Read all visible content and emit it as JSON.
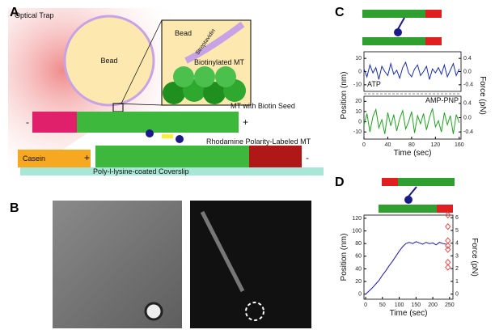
{
  "panel_labels": [
    "A",
    "B",
    "C",
    "D"
  ],
  "diagram": {
    "optical_trap": "Optical Trap",
    "bead": "Bead",
    "inset_bead": "Bead",
    "streptavidin": "Streptavidin",
    "biotinylated_mt": "Biotinylated MT",
    "mt_biotin_seed": "MT with Biotin Seed",
    "seed_minus": "-",
    "seed_plus": "+",
    "rhodamine_mt": "Rhodamine Polarity-Labeled MT",
    "casein": "Casein",
    "lower_plus": "+",
    "lower_minus": "-",
    "coverslip": "Poly-l-lysine-coated Coverslip"
  },
  "chart_data": [
    {
      "type": "line",
      "ylabel": "Position (nm)",
      "y2label": "Force (pN)",
      "x": [
        0,
        5,
        10,
        15,
        20,
        25,
        30,
        35,
        40,
        45,
        50,
        55,
        60,
        65,
        70,
        75,
        80,
        85,
        90,
        95,
        100,
        105,
        110,
        115,
        120,
        125,
        130,
        135,
        140,
        145,
        150,
        155,
        160
      ],
      "xlim": [
        0,
        163
      ],
      "ylim": [
        -15,
        15
      ],
      "yticks": [
        -10,
        0,
        10
      ],
      "y2lim": [
        -0.6,
        0.6
      ],
      "y2ticks": [
        -0.4,
        {
          "value": 0,
          "label": "0.0"
        },
        0.4
      ],
      "series": [
        {
          "name": "ATP",
          "color": "#1a2fa8",
          "values": [
            2,
            -4,
            5,
            -1,
            3,
            -6,
            4,
            0,
            -3,
            6,
            -2,
            1,
            -5,
            3,
            7,
            -1,
            -4,
            2,
            5,
            -3,
            0,
            4,
            -6,
            2,
            -1,
            3,
            -2,
            5,
            -4,
            1,
            6,
            -3,
            2
          ]
        }
      ]
    },
    {
      "type": "line",
      "xlabel": "Time (sec)",
      "x": [
        0,
        5,
        10,
        15,
        20,
        25,
        30,
        35,
        40,
        45,
        50,
        55,
        60,
        65,
        70,
        75,
        80,
        85,
        90,
        95,
        100,
        105,
        110,
        115,
        120,
        125,
        130,
        135,
        140,
        145,
        150,
        155,
        160
      ],
      "xlim": [
        0,
        163
      ],
      "xticks": [
        0,
        40,
        80,
        120,
        160
      ],
      "ylim": [
        -17,
        25
      ],
      "yticks": [
        -10,
        0,
        10,
        20
      ],
      "y2lim": [
        -0.6,
        0.6
      ],
      "y2ticks": [
        -0.4,
        {
          "value": 0,
          "label": "0.0"
        },
        0.4
      ],
      "series": [
        {
          "name": "AMP-PNP",
          "color": "#22a022",
          "values": [
            -3,
            8,
            -10,
            5,
            12,
            -6,
            2,
            -12,
            9,
            -4,
            7,
            -9,
            3,
            11,
            -7,
            0,
            10,
            -11,
            6,
            -2,
            8,
            -8,
            4,
            13,
            -5,
            1,
            -10,
            9,
            -3,
            6,
            -12,
            7,
            -1
          ]
        }
      ]
    },
    {
      "type": "line",
      "xlabel": "Time (sec)",
      "ylabel": "Position (nm)",
      "y2label": "Force (pN)",
      "x": [
        0,
        10,
        20,
        30,
        40,
        50,
        60,
        70,
        80,
        90,
        100,
        110,
        120,
        130,
        140,
        150,
        160,
        170,
        180,
        190,
        200,
        210,
        220,
        230,
        240
      ],
      "xlim": [
        -5,
        260
      ],
      "xticks": [
        0,
        50,
        100,
        150,
        200,
        250
      ],
      "ylim": [
        -8,
        125
      ],
      "yticks": [
        0,
        20,
        40,
        60,
        80,
        100,
        120
      ],
      "y2lim": [
        -0.4,
        6.2
      ],
      "y2ticks": [
        0,
        1,
        2,
        3,
        4,
        5,
        6
      ],
      "series": [
        {
          "color": "#1a1aa8",
          "values": [
            0,
            5,
            10,
            16,
            22,
            30,
            37,
            45,
            52,
            60,
            68,
            75,
            80,
            82,
            80,
            83,
            81,
            79,
            82,
            80,
            81,
            78,
            82,
            80,
            79
          ]
        },
        {
          "type": "scatter",
          "axis": "y2",
          "color": "#e05050",
          "x": [
            245,
            245,
            245,
            245,
            245,
            245,
            245
          ],
          "values": [
            6.2,
            5.3,
            4.2,
            3.8,
            3.5,
            2.5,
            2.1
          ]
        }
      ]
    }
  ]
}
